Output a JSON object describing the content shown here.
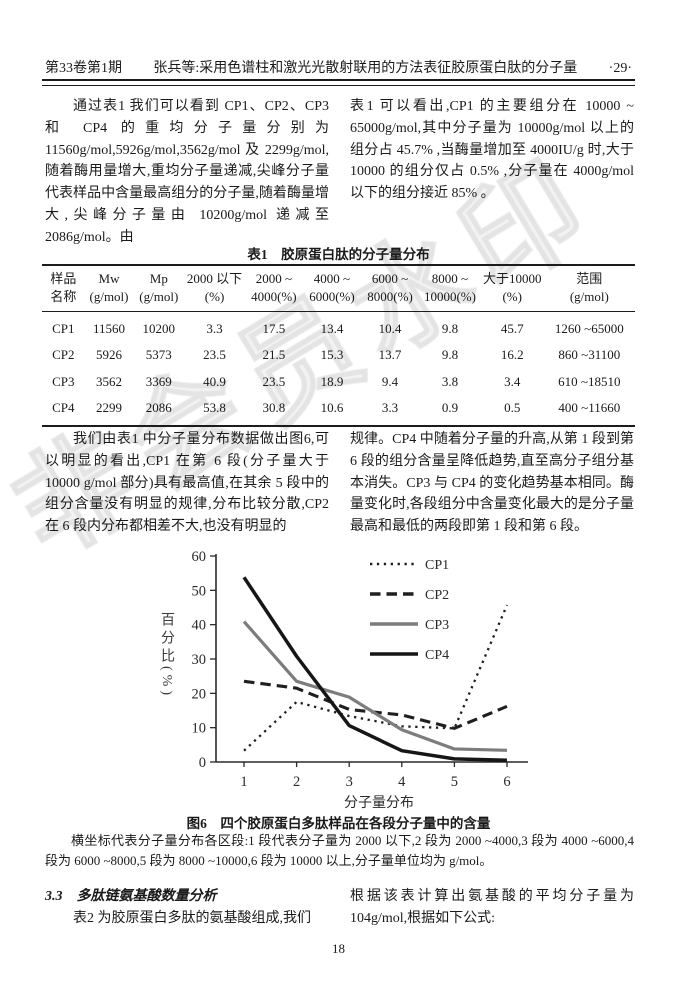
{
  "header": {
    "issue": "第33卷第1期",
    "running_title": "张兵等:采用色谱柱和激光光散射联用的方法表征胶原蛋白肽的分子量",
    "page_marker": "·29·"
  },
  "body": {
    "para1_left": "通过表1 我们可以看到 CP1、CP2、CP3 和 CP4 的重均分子量分别为 11560g/mol,5926g/mol,3562g/mol 及 2299g/mol,随着酶用量增大,重均分子量递减,尖峰分子量代表样品中含量最高组分的分子量,随着酶量增大,尖峰分子量由 10200g/mol 递减至 2086g/mol。由",
    "para1_right": "表1 可以看出,CP1 的主要组分在 10000 ~ 65000g/mol,其中分子量为 10000g/mol 以上的组分占 45.7% ,当酶量增加至 4000IU/g 时,大于 10000 的组分仅占 0.5% ,分子量在 4000g/mol 以下的组分接近 85% 。",
    "para2_left": "我们由表1 中分子量分布数据做出图6,可以明显的看出,CP1 在第 6 段(分子量大于 10000 g/mol 部分)具有最高值,在其余 5 段中的组分含量没有明显的规律,分布比较分散,CP2 在 6 段内分布都相差不大,也没有明显的",
    "para2_right": "规律。CP4 中随着分子量的升高,从第 1 段到第 6 段的组分含量呈降低趋势,直至高分子组分基本消失。CP3 与 CP4 的变化趋势基本相同。酶量变化时,各段组分中含量变化最大的是分子量最高和最低的两段即第 1 段和第 6 段。",
    "section33_heading": "3.3　多肽链氨基酸数量分析",
    "section33_left": "表2 为胶原蛋白多肽的氨基酸组成,我们",
    "section33_right": "根据该表计算出氨基酸的平均分子量为 104g/mol,根据如下公式:",
    "page_number": "18",
    "watermark": "非会员水印"
  },
  "table1": {
    "caption": "表1　胶原蛋白肽的分子量分布",
    "columns": [
      {
        "l1": "样品",
        "l2": "名称"
      },
      {
        "l1": "Mw",
        "l2": "(g/mol)"
      },
      {
        "l1": "Mp",
        "l2": "(g/mol)"
      },
      {
        "l1": "2000 以下",
        "l2": "(%)"
      },
      {
        "l1": "2000 ~",
        "l2": "4000(%)"
      },
      {
        "l1": "4000 ~",
        "l2": "6000(%)"
      },
      {
        "l1": "6000 ~",
        "l2": "8000(%)"
      },
      {
        "l1": "8000 ~",
        "l2": "10000(%)"
      },
      {
        "l1": "大于10000",
        "l2": "(%)"
      },
      {
        "l1": "范围",
        "l2": "(g/mol)"
      }
    ],
    "rows": [
      [
        "CP1",
        "11560",
        "10200",
        "3.3",
        "17.5",
        "13.4",
        "10.4",
        "9.8",
        "45.7",
        "1260 ~65000"
      ],
      [
        "CP2",
        "5926",
        "5373",
        "23.5",
        "21.5",
        "15.3",
        "13.7",
        "9.8",
        "16.2",
        "860 ~31100"
      ],
      [
        "CP3",
        "3562",
        "3369",
        "40.9",
        "23.5",
        "18.9",
        "9.4",
        "3.8",
        "3.4",
        "610 ~18510"
      ],
      [
        "CP4",
        "2299",
        "2086",
        "53.8",
        "30.8",
        "10.6",
        "3.3",
        "0.9",
        "0.5",
        "400 ~11660"
      ]
    ]
  },
  "figure6": {
    "caption": "图6　四个胶原蛋白多肽样品在各段分子量中的含量",
    "note": "横坐标代表分子量分布各区段:1 段代表分子量为 2000 以下,2 段为 2000 ~4000,3 段为 4000 ~6000,4 段为 6000 ~8000,5 段为 8000 ~10000,6 段为 10000 以上,分子量单位均为 g/mol。"
  },
  "chart_data": {
    "type": "line",
    "x": [
      1,
      2,
      3,
      4,
      5,
      6
    ],
    "xlabel": "分子量分布",
    "ylabel": "百分比(%)",
    "ylim": [
      0,
      60
    ],
    "yticks": [
      0,
      10,
      20,
      30,
      40,
      50,
      60
    ],
    "grid": false,
    "legend_position": "inside-top-right",
    "series": [
      {
        "name": "CP1",
        "style": "dotted",
        "color": "#1f1f1f",
        "values": [
          3.3,
          17.5,
          13.4,
          10.4,
          9.8,
          45.7
        ]
      },
      {
        "name": "CP2",
        "style": "dashed",
        "color": "#1f1f1f",
        "values": [
          23.5,
          21.5,
          15.3,
          13.7,
          9.8,
          16.2
        ]
      },
      {
        "name": "CP3",
        "style": "solid",
        "color": "#7c7c7c",
        "values": [
          40.9,
          23.5,
          18.9,
          9.4,
          3.8,
          3.4
        ]
      },
      {
        "name": "CP4",
        "style": "solid",
        "color": "#161616",
        "values": [
          53.8,
          30.8,
          10.6,
          3.3,
          0.9,
          0.5
        ]
      }
    ]
  }
}
